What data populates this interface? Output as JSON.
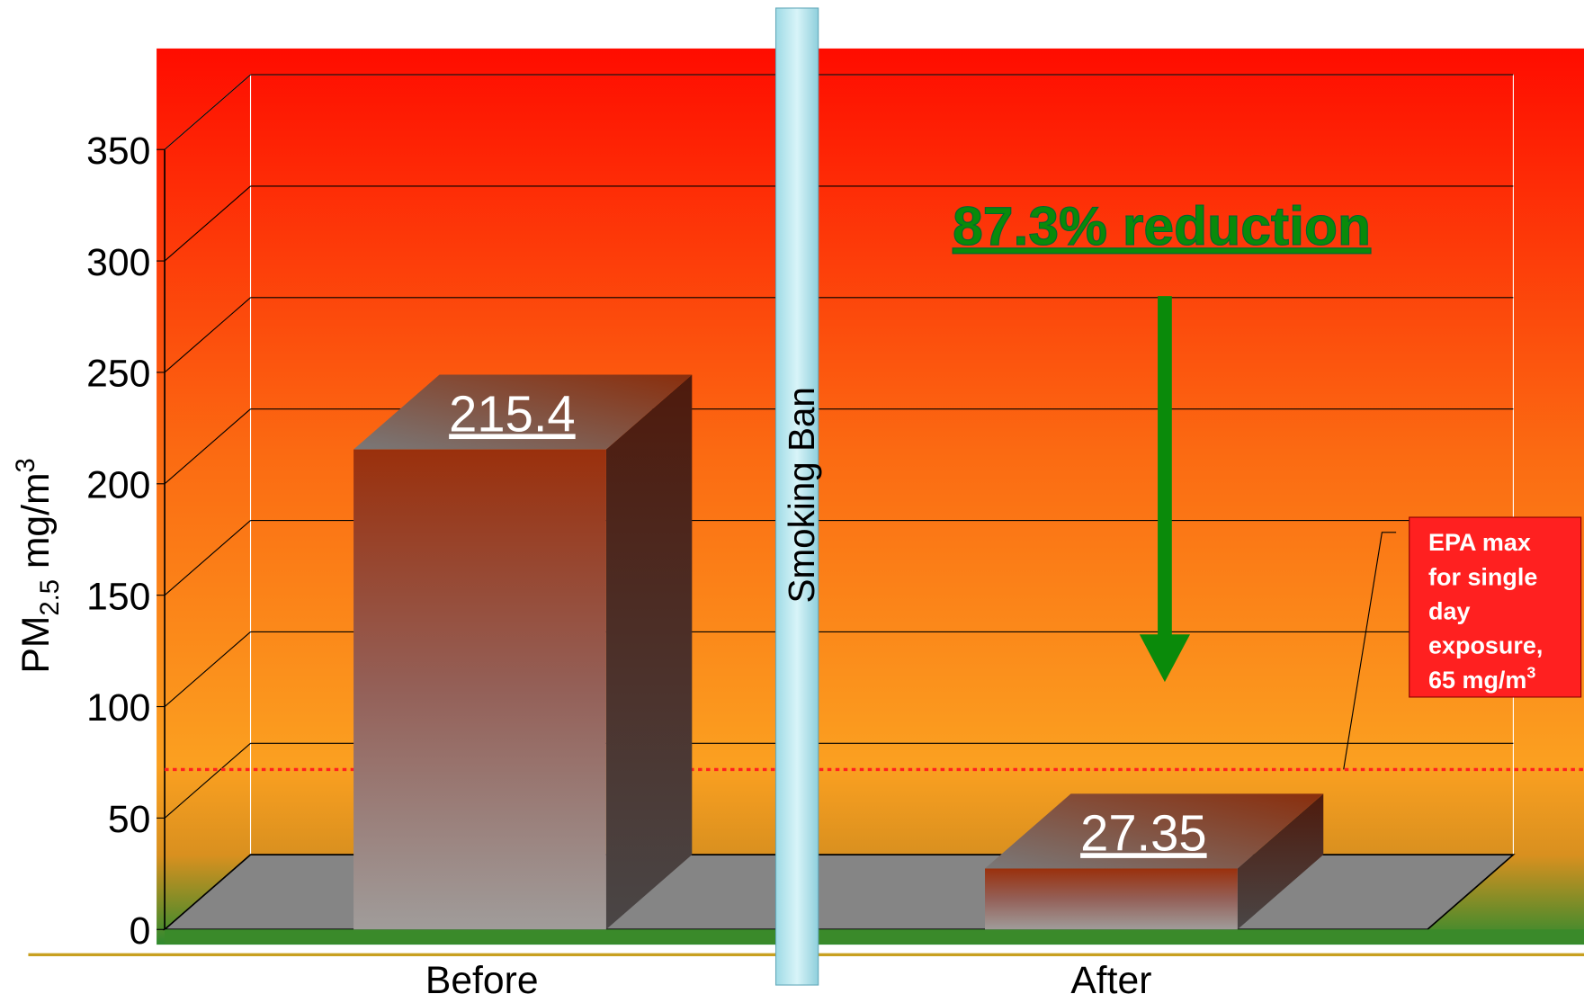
{
  "chart_data": {
    "type": "bar3d",
    "categories": [
      "Before",
      "After"
    ],
    "values": [
      215.4,
      27.35
    ],
    "ylim": [
      0,
      350
    ],
    "yticks": [
      0,
      50,
      100,
      150,
      200,
      250,
      300,
      350
    ],
    "grid": true,
    "ylabel": {
      "main": "PM",
      "sub": "2.5",
      "unit": " mg/m",
      "sup": "3"
    },
    "divider_label": "Smoking Ban",
    "annotation": "87.3% reduction",
    "reference": {
      "value": 65,
      "color": "#ff2020",
      "label": "EPA max for single day exposure, 65 mg/m",
      "label_sup": "3"
    }
  }
}
